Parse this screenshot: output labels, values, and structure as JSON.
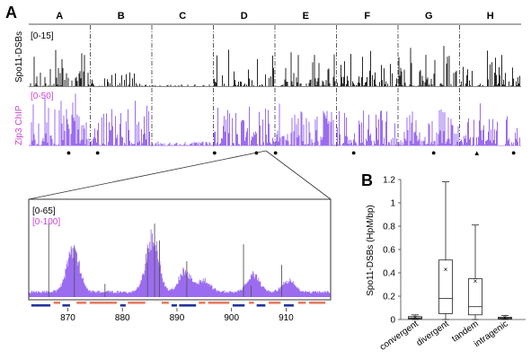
{
  "figure": {
    "panel_a_label": "A",
    "panel_b_label": "B"
  },
  "colors": {
    "dsb": "#111111",
    "zip3": "#9b6cf0",
    "zip3_label": "#cc44cc",
    "gene_red": "#e87a60",
    "gene_blue": "#24349a",
    "axis": "#444444"
  },
  "chart_data": [
    {
      "type": "area",
      "panel": "A",
      "description_tracks": [
        "Spo11-DSBs",
        "Zip3 ChIP"
      ],
      "regions": [
        "A",
        "B",
        "C",
        "D",
        "E",
        "F",
        "G",
        "H"
      ],
      "tracks": [
        {
          "name": "Spo11-DSBs",
          "range_label": "[0-15]",
          "color": "#111111"
        },
        {
          "name": "Zip3 ChIP",
          "range_label": "[0-50]",
          "color": "#9b6cf0"
        }
      ],
      "markers": [
        {
          "region": "A",
          "symbol": "●",
          "pos": 0.65
        },
        {
          "region": "B",
          "symbol": "●",
          "pos": 0.12
        },
        {
          "region": "D",
          "symbol": "●",
          "pos": 0.02
        },
        {
          "region": "D",
          "symbol": "●",
          "pos": 0.7
        },
        {
          "region": "E",
          "symbol": "●",
          "pos": 0.01
        },
        {
          "region": "F",
          "symbol": "●",
          "pos": 0.28
        },
        {
          "region": "G",
          "symbol": "●",
          "pos": 0.58
        },
        {
          "region": "H",
          "symbol": "▲",
          "pos": 0.28
        },
        {
          "region": "H",
          "symbol": "●",
          "pos": 0.88
        }
      ],
      "zoom_region": "E"
    },
    {
      "type": "area",
      "panel": "A-zoom",
      "range_labels": [
        "[0-65]",
        "[0-100]"
      ],
      "x_ticks": [
        870,
        880,
        890,
        900,
        910
      ],
      "xlim": [
        863,
        918
      ],
      "zip3_peaks": [
        {
          "center": 871,
          "height": 0.45
        },
        {
          "center": 885.5,
          "height": 0.58
        },
        {
          "center": 891.5,
          "height": 0.22
        },
        {
          "center": 895,
          "height": 0.12
        },
        {
          "center": 904,
          "height": 0.18
        },
        {
          "center": 910.5,
          "height": 0.12
        }
      ],
      "dsb_spikes": [
        {
          "x": 866.5,
          "h": 0.78
        },
        {
          "x": 871.2,
          "h": 0.55
        },
        {
          "x": 876.8,
          "h": 0.14
        },
        {
          "x": 884.6,
          "h": 0.52
        },
        {
          "x": 885.9,
          "h": 0.78
        },
        {
          "x": 886.8,
          "h": 0.6
        },
        {
          "x": 891.8,
          "h": 0.38
        },
        {
          "x": 902.2,
          "h": 0.56
        },
        {
          "x": 903.6,
          "h": 0.12
        },
        {
          "x": 909.2,
          "h": 0.34
        }
      ],
      "genes": [
        {
          "start": 863.3,
          "end": 866.8,
          "strand": "minus"
        },
        {
          "start": 867.4,
          "end": 868.6,
          "strand": "plus"
        },
        {
          "start": 869.0,
          "end": 870.4,
          "strand": "minus"
        },
        {
          "start": 871.6,
          "end": 873.4,
          "strand": "plus"
        },
        {
          "start": 874.0,
          "end": 879.0,
          "strand": "plus"
        },
        {
          "start": 879.6,
          "end": 880.6,
          "strand": "minus"
        },
        {
          "start": 881.0,
          "end": 884.2,
          "strand": "plus"
        },
        {
          "start": 887.2,
          "end": 888.5,
          "strand": "plus"
        },
        {
          "start": 889.0,
          "end": 890.0,
          "strand": "minus"
        },
        {
          "start": 890.4,
          "end": 893.5,
          "strand": "minus"
        },
        {
          "start": 894.0,
          "end": 895.2,
          "strand": "plus"
        },
        {
          "start": 895.7,
          "end": 899.6,
          "strand": "plus"
        },
        {
          "start": 900.2,
          "end": 902.4,
          "strand": "minus"
        },
        {
          "start": 903.2,
          "end": 904.1,
          "strand": "plus"
        },
        {
          "start": 904.6,
          "end": 906.2,
          "strand": "minus"
        },
        {
          "start": 906.8,
          "end": 909.0,
          "strand": "plus"
        },
        {
          "start": 909.6,
          "end": 911.4,
          "strand": "minus"
        },
        {
          "start": 912.2,
          "end": 913.6,
          "strand": "plus"
        },
        {
          "start": 914.2,
          "end": 917.2,
          "strand": "plus"
        }
      ]
    },
    {
      "type": "box",
      "panel": "B",
      "ylabel": "Spo11-DSBs (HpM/bp)",
      "ylim": [
        0,
        1.2
      ],
      "y_ticks": [
        0,
        0.2,
        0.4,
        0.6,
        0.8,
        1,
        1.2
      ],
      "y_tick_labels": [
        "0",
        "0.2",
        "0.4",
        "0.6",
        "0.8",
        "1",
        "1.2"
      ],
      "categories": [
        "convergent",
        "divergent",
        "tandem",
        "intragenic"
      ],
      "boxes": [
        {
          "category": "convergent",
          "whisker_low": 0.0,
          "q1": 0.005,
          "median": 0.012,
          "q3": 0.025,
          "whisker_high": 0.04,
          "mean": 0.02
        },
        {
          "category": "divergent",
          "whisker_low": 0.0,
          "q1": 0.05,
          "median": 0.18,
          "q3": 0.51,
          "whisker_high": 1.18,
          "mean": 0.43
        },
        {
          "category": "tandem",
          "whisker_low": 0.0,
          "q1": 0.04,
          "median": 0.11,
          "q3": 0.35,
          "whisker_high": 0.81,
          "mean": 0.33
        },
        {
          "category": "intragenic",
          "whisker_low": 0.0,
          "q1": 0.005,
          "median": 0.012,
          "q3": 0.02,
          "whisker_high": 0.035,
          "mean": 0.015
        }
      ]
    }
  ]
}
